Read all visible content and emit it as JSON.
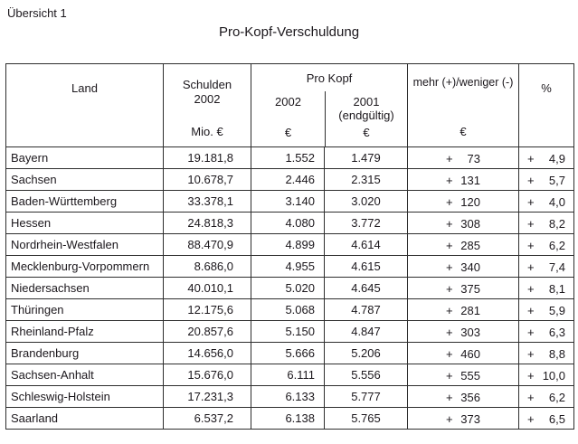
{
  "page": {
    "overview_label": "Übersicht 1",
    "title": "Pro-Kopf-Verschuldung"
  },
  "colors": {
    "background": "#ffffff",
    "text": "#1b171c",
    "border": "#2e2e2e"
  },
  "table": {
    "headers": {
      "land": "Land",
      "schulden_line1": "Schulden",
      "schulden_line2": "2002",
      "schulden_unit": "Mio. €",
      "pro_kopf": "Pro Kopf",
      "year_2002": "2002",
      "year_2001_line1": "2001",
      "year_2001_line2": "(endgültig)",
      "euro": "€",
      "diff": "mehr (+)/weniger (-)",
      "pct": "%"
    },
    "rows": [
      {
        "land": "Bayern",
        "schulden": "19.181,8",
        "pk2002": "1.552",
        "pk2001": "1.479",
        "diff_sign": "+",
        "diff_value": "73",
        "pct_sign": "+",
        "pct_value": "4,9"
      },
      {
        "land": "Sachsen",
        "schulden": "10.678,7",
        "pk2002": "2.446",
        "pk2001": "2.315",
        "diff_sign": "+",
        "diff_value": "131",
        "pct_sign": "+",
        "pct_value": "5,7"
      },
      {
        "land": "Baden-Württemberg",
        "schulden": "33.378,1",
        "pk2002": "3.140",
        "pk2001": "3.020",
        "diff_sign": "+",
        "diff_value": "120",
        "pct_sign": "+",
        "pct_value": "4,0"
      },
      {
        "land": "Hessen",
        "schulden": "24.818,3",
        "pk2002": "4.080",
        "pk2001": "3.772",
        "diff_sign": "+",
        "diff_value": "308",
        "pct_sign": "+",
        "pct_value": "8,2"
      },
      {
        "land": "Nordrhein-Westfalen",
        "schulden": "88.470,9",
        "pk2002": "4.899",
        "pk2001": "4.614",
        "diff_sign": "+",
        "diff_value": "285",
        "pct_sign": "+",
        "pct_value": "6,2"
      },
      {
        "land": "Mecklenburg-Vorpommern",
        "schulden": "8.686,0",
        "pk2002": "4.955",
        "pk2001": "4.615",
        "diff_sign": "+",
        "diff_value": "340",
        "pct_sign": "+",
        "pct_value": "7,4"
      },
      {
        "land": "Niedersachsen",
        "schulden": "40.010,1",
        "pk2002": "5.020",
        "pk2001": "4.645",
        "diff_sign": "+",
        "diff_value": "375",
        "pct_sign": "+",
        "pct_value": "8,1"
      },
      {
        "land": "Thüringen",
        "schulden": "12.175,6",
        "pk2002": "5.068",
        "pk2001": "4.787",
        "diff_sign": "+",
        "diff_value": "281",
        "pct_sign": "+",
        "pct_value": "5,9"
      },
      {
        "land": "Rheinland-Pfalz",
        "schulden": "20.857,6",
        "pk2002": "5.150",
        "pk2001": "4.847",
        "diff_sign": "+",
        "diff_value": "303",
        "pct_sign": "+",
        "pct_value": "6,3"
      },
      {
        "land": "Brandenburg",
        "schulden": "14.656,0",
        "pk2002": "5.666",
        "pk2001": "5.206",
        "diff_sign": "+",
        "diff_value": "460",
        "pct_sign": "+",
        "pct_value": "8,8"
      },
      {
        "land": "Sachsen-Anhalt",
        "schulden": "15.676,0",
        "pk2002": "6.111",
        "pk2001": "5.556",
        "diff_sign": "+",
        "diff_value": "555",
        "pct_sign": "+",
        "pct_value": "10,0"
      },
      {
        "land": "Schleswig-Holstein",
        "schulden": "17.231,3",
        "pk2002": "6.133",
        "pk2001": "5.777",
        "diff_sign": "+",
        "diff_value": "356",
        "pct_sign": "+",
        "pct_value": "6,2"
      },
      {
        "land": "Saarland",
        "schulden": "6.537,2",
        "pk2002": "6.138",
        "pk2001": "5.765",
        "diff_sign": "+",
        "diff_value": "373",
        "pct_sign": "+",
        "pct_value": "6,5"
      }
    ]
  }
}
